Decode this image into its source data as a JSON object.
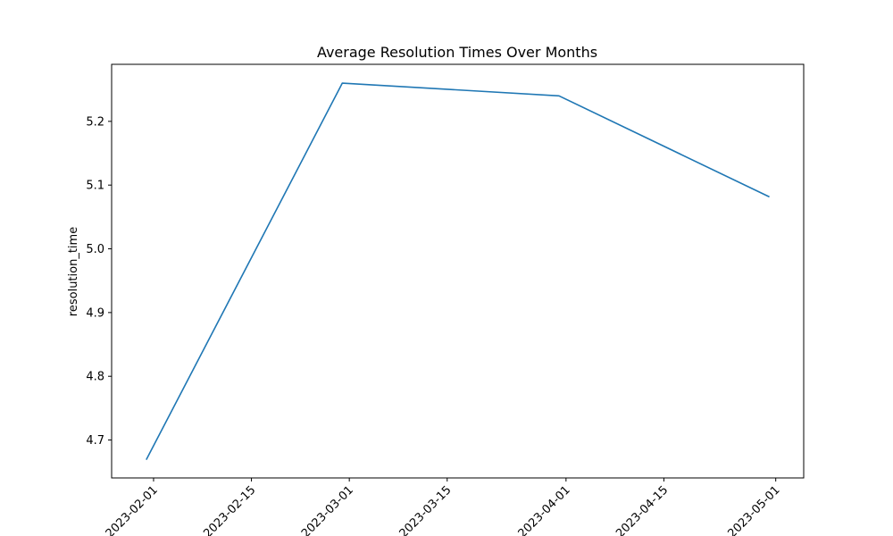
{
  "chart_data": {
    "type": "line",
    "title": "Average Resolution Times Over Months",
    "xlabel": "",
    "ylabel": "resolution_time",
    "x": [
      "2023-01-31",
      "2023-02-28",
      "2023-03-31",
      "2023-04-30"
    ],
    "series": [
      {
        "values": [
          4.67,
          5.26,
          5.24,
          5.082
        ],
        "color": "#1f77b4"
      }
    ],
    "x_ticks": [
      "2023-02-01",
      "2023-02-15",
      "2023-03-01",
      "2023-03-15",
      "2023-04-01",
      "2023-04-15",
      "2023-05-01"
    ],
    "y_ticks": [
      "4.7",
      "4.8",
      "4.9",
      "5.0",
      "5.1",
      "5.2"
    ],
    "xlim": [
      "2023-01-26",
      "2023-05-05"
    ],
    "ylim": [
      4.6405,
      5.2895
    ],
    "grid": false,
    "legend": "none"
  }
}
